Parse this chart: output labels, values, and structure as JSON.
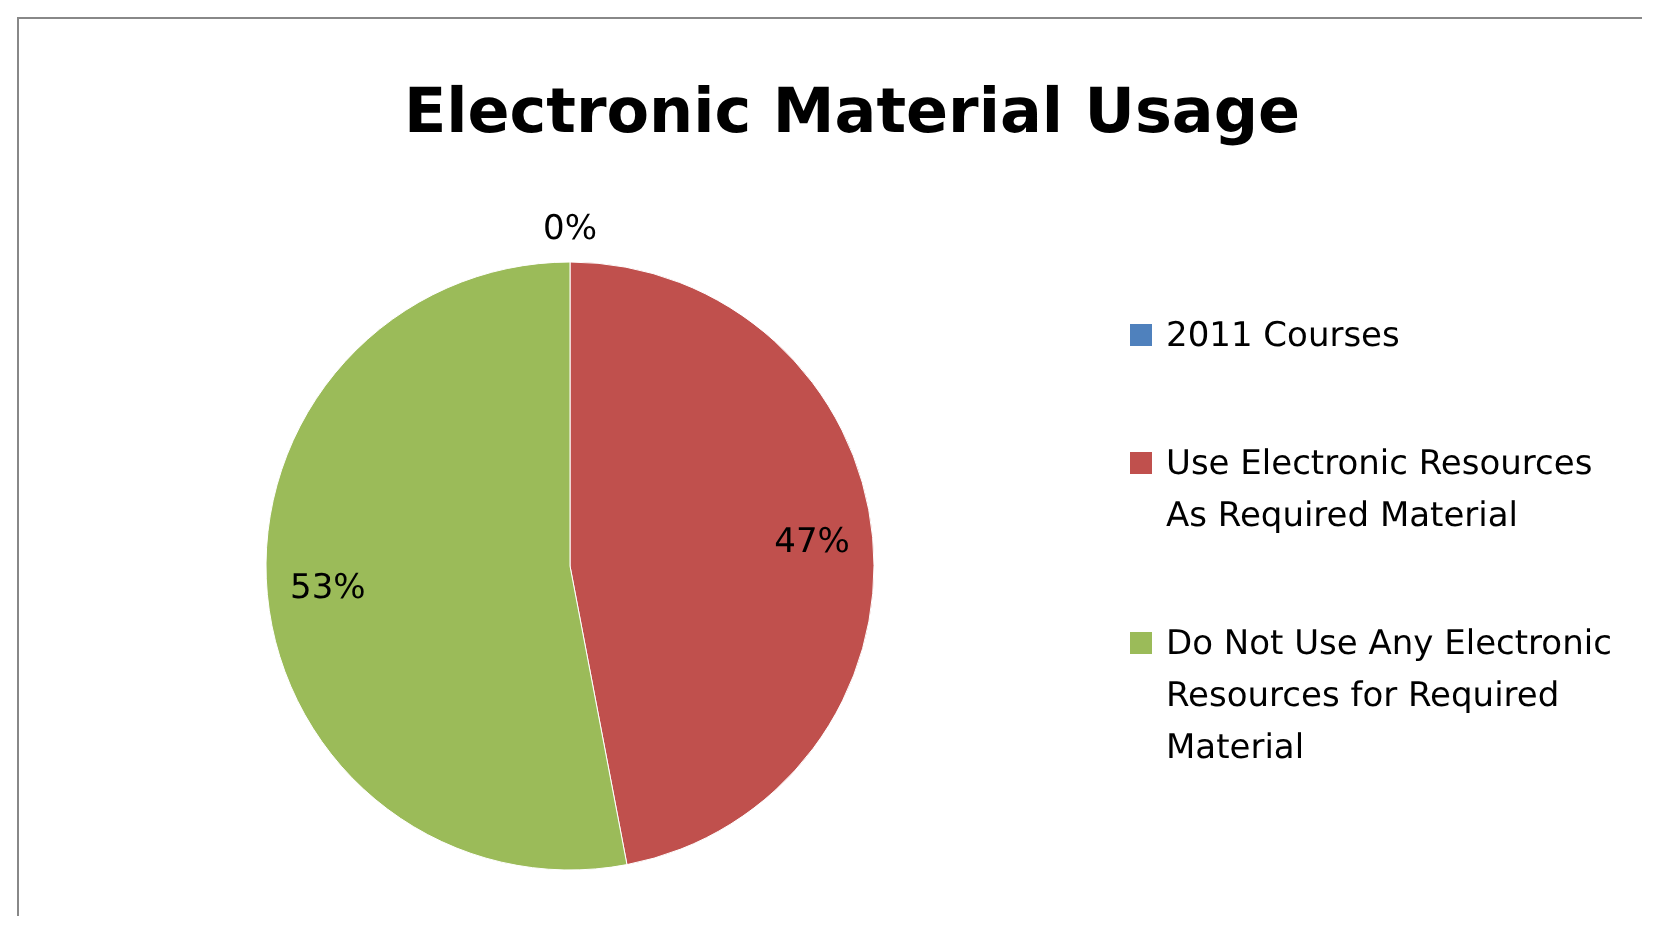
{
  "chart_data": {
    "type": "pie",
    "title": "Electronic Material Usage",
    "categories": [
      "2011 Courses",
      "Use Electronic Resources As Required Material",
      "Do Not Use Any Electronic Resources for Required Material"
    ],
    "values": [
      0,
      47,
      53
    ],
    "colors": [
      "#4f81bd",
      "#c0504d",
      "#9bbb59"
    ],
    "value_labels": [
      "0%",
      "47%",
      "53%"
    ],
    "legend": "right"
  }
}
